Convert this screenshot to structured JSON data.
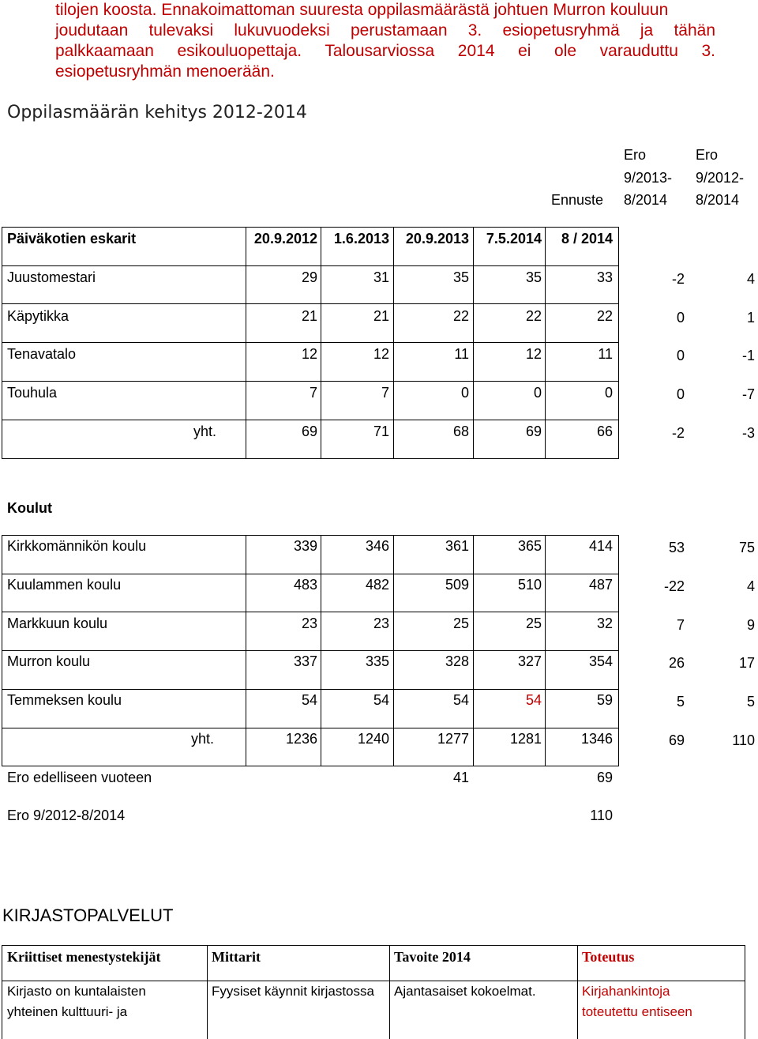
{
  "intro_lines": [
    "tilojen koosta. Ennakoimattoman suuresta oppilasmäärästä johtuen Murron kouluun",
    "joudutaan tulevaksi lukuvuodeksi perustamaan 3. esiopetusryhmä ja tähän",
    "palkkaamaan esikouluopettaja. Talousarviossa 2014 ei ole varauduttu 3.",
    "esiopetusryhmän menoerään."
  ],
  "heading": "Oppilasmäärän kehitys 2012-2014",
  "top_headers": {
    "ennuste": "Ennuste",
    "ero1": [
      "Ero",
      "9/2013-",
      "8/2014"
    ],
    "ero2": [
      "Ero",
      "9/2012-",
      "8/2014"
    ]
  },
  "daycare": {
    "title": "Päiväkotien eskarit",
    "dates": [
      "20.9.2012",
      "1.6.2013",
      "20.9.2013",
      "7.5.2014",
      "8 / 2014"
    ],
    "rows": [
      {
        "name": "Juustomestari",
        "v": [
          "29",
          "31",
          "35",
          "35",
          "33"
        ],
        "e1": "-2",
        "e2": "4"
      },
      {
        "name": "Käpytikka",
        "v": [
          "21",
          "21",
          "22",
          "22",
          "22"
        ],
        "e1": "0",
        "e2": "1"
      },
      {
        "name": "Tenavatalo",
        "v": [
          "12",
          "12",
          "11",
          "12",
          "11"
        ],
        "e1": "0",
        "e2": "-1"
      },
      {
        "name": "Touhula",
        "v": [
          "7",
          "7",
          "0",
          "0",
          "0"
        ],
        "e1": "0",
        "e2": "-7"
      }
    ],
    "total": {
      "label": "yht.",
      "v": [
        "69",
        "71",
        "68",
        "69",
        "66"
      ],
      "e1": "-2",
      "e2": "-3"
    }
  },
  "schools": {
    "title": "Koulut",
    "rows": [
      {
        "name": "Kirkkomännikön koulu",
        "v": [
          "339",
          "346",
          "361",
          "365",
          "414"
        ],
        "e1": "53",
        "e2": "75"
      },
      {
        "name": "Kuulammen koulu",
        "v": [
          "483",
          "482",
          "509",
          "510",
          "487"
        ],
        "e1": "-22",
        "e2": "4"
      },
      {
        "name": "Markkuun koulu",
        "v": [
          "23",
          "23",
          "25",
          "25",
          "32"
        ],
        "e1": "7",
        "e2": "9"
      },
      {
        "name": "Murron koulu",
        "v": [
          "337",
          "335",
          "328",
          "327",
          "354"
        ],
        "e1": "26",
        "e2": "17"
      },
      {
        "name": "Temmeksen koulu",
        "v": [
          "54",
          "54",
          "54",
          "54",
          "59"
        ],
        "e1": "5",
        "e2": "5"
      }
    ],
    "total": {
      "label": "yht.",
      "v": [
        "1236",
        "1240",
        "1277",
        "1281",
        "1346"
      ],
      "e1": "69",
      "e2": "110"
    },
    "diff_prev": {
      "label": "Ero edelliseen vuoteen",
      "col3": "41",
      "col5": "69"
    },
    "diff_total": {
      "label": "Ero 9/2012-8/2014",
      "col5": "110"
    }
  },
  "library": {
    "title": "KIRJASTOPALVELUT",
    "headers": [
      "Kriittiset menestystekijät",
      "Mittarit",
      "Tavoite 2014",
      "Toteutus"
    ],
    "row": [
      [
        "Kirjasto on kuntalaisten",
        "yhteinen kulttuuri- ja"
      ],
      [
        "Fyysiset käynnit kirjastossa"
      ],
      [
        "Ajantasaiset kokoelmat."
      ],
      [
        "Kirjahankintoja",
        "toteutettu entiseen"
      ]
    ]
  },
  "colors": {
    "red_text": "#c00000"
  }
}
